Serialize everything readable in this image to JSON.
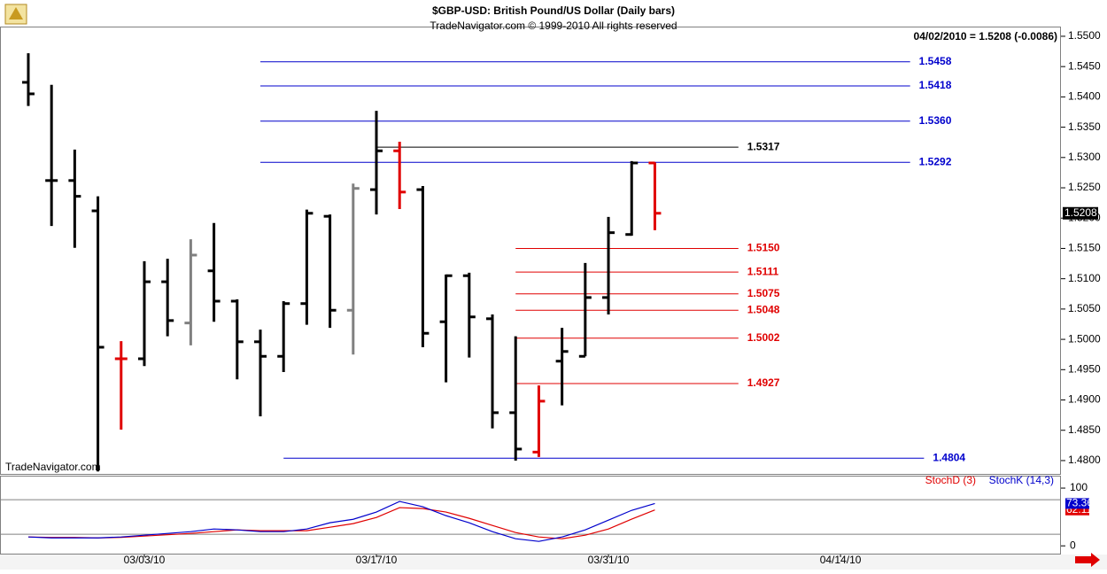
{
  "header": {
    "title": "$GBP-USD:  British Pound/US Dollar  (Daily bars)",
    "subtitle": "TradeNavigator.com © 1999-2010 All rights reserved",
    "status": "04/02/2010 = 1.5208 (-0.0086)",
    "watermark": "TradeNavigator.com"
  },
  "chart_data": [
    {
      "type": "ohlc",
      "x": [
        0,
        1,
        2,
        3,
        4,
        5,
        6,
        7,
        8,
        9,
        10,
        11,
        12,
        13,
        14,
        15,
        16,
        17,
        18,
        19,
        20,
        21,
        22,
        23,
        24,
        25,
        26,
        27
      ],
      "open": [
        1.5424,
        1.5262,
        1.5262,
        1.5212,
        1.4968,
        1.4968,
        1.5095,
        1.5027,
        1.5113,
        1.5063,
        1.4996,
        1.4972,
        1.5059,
        1.5203,
        1.5048,
        1.5247,
        1.5311,
        1.5247,
        1.5029,
        1.5105,
        1.5034,
        1.4879,
        1.4814,
        1.4964,
        1.4972,
        1.5069,
        1.5173,
        1.5291
      ],
      "high": [
        1.5472,
        1.542,
        1.5313,
        1.5236,
        1.4997,
        1.5129,
        1.5133,
        1.5165,
        1.5192,
        1.5066,
        1.5016,
        1.5063,
        1.5214,
        1.5206,
        1.5257,
        1.5377,
        1.5326,
        1.5253,
        1.5107,
        1.511,
        1.5041,
        1.5005,
        1.4924,
        1.5019,
        1.5126,
        1.5202,
        1.5294,
        1.5292
      ],
      "low": [
        1.5385,
        1.5187,
        1.5151,
        1.4782,
        1.4851,
        1.4956,
        1.5005,
        1.499,
        1.5029,
        1.4934,
        1.4873,
        1.4946,
        1.5024,
        1.5019,
        1.4975,
        1.5206,
        1.5215,
        1.4987,
        1.4929,
        1.497,
        1.4853,
        1.48,
        1.4806,
        1.4891,
        1.4972,
        1.5041,
        1.5171,
        1.518
      ],
      "close": [
        1.5405,
        1.5262,
        1.5236,
        1.4987,
        1.4968,
        1.5095,
        1.5031,
        1.5139,
        1.5063,
        1.4996,
        1.4972,
        1.5059,
        1.5208,
        1.5048,
        1.5249,
        1.5311,
        1.5243,
        1.501,
        1.5105,
        1.5037,
        1.4879,
        1.4819,
        1.4898,
        1.498,
        1.5069,
        1.5176,
        1.5291,
        1.5208
      ],
      "colors": [
        "#000000",
        "#000000",
        "#000000",
        "#000000",
        "#e00000",
        "#000000",
        "#000000",
        "#808080",
        "#000000",
        "#000000",
        "#000000",
        "#000000",
        "#000000",
        "#000000",
        "#808080",
        "#000000",
        "#e00000",
        "#000000",
        "#000000",
        "#000000",
        "#000000",
        "#000000",
        "#e00000",
        "#000000",
        "#000000",
        "#000000",
        "#000000",
        "#e00000"
      ],
      "xlim": [
        -1.22,
        44.5
      ],
      "xticks": [
        {
          "value": 5,
          "label": "03/03/10"
        },
        {
          "value": 15,
          "label": "03/17/10"
        },
        {
          "value": 25,
          "label": "03/31/10"
        },
        {
          "value": 35,
          "label": "04/14/10"
        }
      ],
      "ylim": [
        1.4778,
        1.5516
      ],
      "yticks": [
        {
          "value": 1.48,
          "label": "1.4800"
        },
        {
          "value": 1.485,
          "label": "1.4850"
        },
        {
          "value": 1.49,
          "label": "1.4900"
        },
        {
          "value": 1.495,
          "label": "1.4950"
        },
        {
          "value": 1.5,
          "label": "1.5000"
        },
        {
          "value": 1.505,
          "label": "1.5050"
        },
        {
          "value": 1.51,
          "label": "1.5100"
        },
        {
          "value": 1.515,
          "label": "1.5150"
        },
        {
          "value": 1.52,
          "label": "1.5200"
        },
        {
          "value": 1.525,
          "label": "1.5250"
        },
        {
          "value": 1.53,
          "label": "1.5300"
        },
        {
          "value": 1.535,
          "label": "1.5350"
        },
        {
          "value": 1.54,
          "label": "1.5400"
        },
        {
          "value": 1.545,
          "label": "1.5450"
        },
        {
          "value": 1.55,
          "label": "1.5500"
        }
      ],
      "levels": [
        {
          "value": 1.5458,
          "label": "1.5458",
          "color": "#0000cc",
          "x": [
            10,
            38
          ]
        },
        {
          "value": 1.5418,
          "label": "1.5418",
          "color": "#0000cc",
          "x": [
            10,
            38
          ]
        },
        {
          "value": 1.536,
          "label": "1.5360",
          "color": "#0000cc",
          "x": [
            10,
            38
          ]
        },
        {
          "value": 1.5292,
          "label": "1.5292",
          "color": "#0000cc",
          "x": [
            10,
            38
          ]
        },
        {
          "value": 1.5317,
          "label": "1.5317",
          "color": "#000000",
          "x": [
            15,
            30.6
          ]
        },
        {
          "value": 1.515,
          "label": "1.5150",
          "color": "#e00000",
          "x": [
            21,
            30.6
          ]
        },
        {
          "value": 1.5111,
          "label": "1.5111",
          "color": "#e00000",
          "x": [
            21,
            30.6
          ]
        },
        {
          "value": 1.5075,
          "label": "1.5075",
          "color": "#e00000",
          "x": [
            21,
            30.6
          ]
        },
        {
          "value": 1.5048,
          "label": "1.5048",
          "color": "#e00000",
          "x": [
            21,
            30.6
          ]
        },
        {
          "value": 1.5002,
          "label": "1.5002",
          "color": "#e00000",
          "x": [
            21,
            30.6
          ]
        },
        {
          "value": 1.4927,
          "label": "1.4927",
          "color": "#e00000",
          "x": [
            21,
            30.6
          ]
        },
        {
          "value": 1.4804,
          "label": "1.4804",
          "color": "#0000cc",
          "x": [
            11,
            38.6
          ]
        }
      ]
    },
    {
      "type": "line",
      "x": [
        0,
        1,
        2,
        3,
        4,
        5,
        6,
        7,
        8,
        9,
        10,
        11,
        12,
        13,
        14,
        15,
        16,
        17,
        18,
        19,
        20,
        21,
        22,
        23,
        24,
        25,
        26,
        27
      ],
      "series": [
        {
          "name": "StochD (3)",
          "color": "#e00000",
          "values": [
            15.4,
            14.6,
            14.6,
            13.8,
            14.6,
            16.9,
            19.2,
            21.5,
            24.6,
            27.7,
            26.2,
            26.2,
            26.2,
            32.3,
            38.5,
            49.2,
            66.2,
            64.6,
            58.5,
            47.7,
            35.4,
            23.1,
            15.4,
            12.3,
            18.5,
            29.2,
            46.2,
            62.11
          ]
        },
        {
          "name": "StochK (14,3)",
          "color": "#0000cc",
          "values": [
            15.4,
            13.8,
            13.8,
            13.8,
            15.4,
            18.5,
            21.5,
            24.6,
            29.2,
            27.7,
            24.6,
            24.6,
            29.2,
            40,
            46,
            58.5,
            76.9,
            67.7,
            52.3,
            40,
            24.6,
            12.3,
            7.7,
            15.4,
            27.7,
            44.6,
            61.5,
            73.36
          ]
        }
      ],
      "ylim": [
        -15,
        120
      ],
      "yticks": [
        0,
        100
      ],
      "guides": [
        20,
        80
      ]
    }
  ]
}
